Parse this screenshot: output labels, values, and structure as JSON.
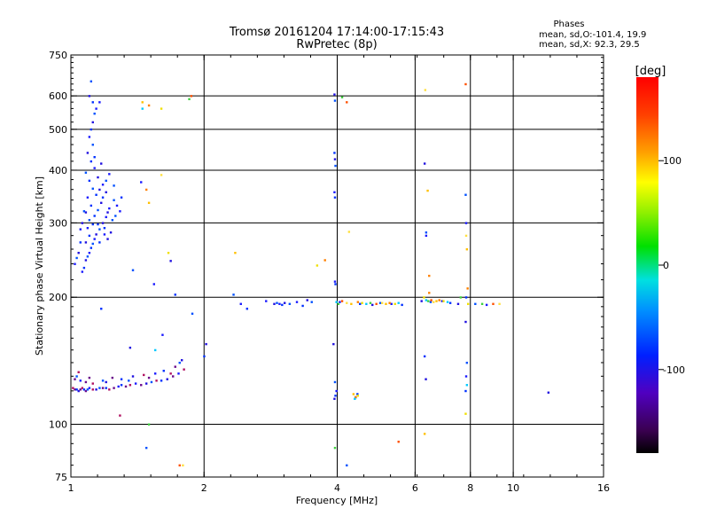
{
  "chart_data": {
    "type": "scatter",
    "title": "Tromsø 20161204 17:14:00-17:15:43",
    "subtitle": "RwPretec (8p)",
    "info": {
      "title": "Phases",
      "line1": "mean, sd,O:-101.4, 19.9",
      "line2": "mean, sd,X:  92.3, 29.5"
    },
    "xlabel": "Frequency [MHz]",
    "ylabel": "Stationary phase Virtual Height [km]",
    "x_scale": "log2",
    "y_scale": "log",
    "xlim": [
      1,
      16
    ],
    "ylim": [
      75,
      750
    ],
    "x_ticks": [
      1,
      2,
      4,
      6,
      8,
      10,
      16
    ],
    "x_tick_labels": [
      "1",
      "2",
      "4",
      "6",
      "8",
      "10",
      "16"
    ],
    "y_ticks": [
      75,
      100,
      200,
      300,
      400,
      500,
      600,
      750
    ],
    "y_tick_labels": [
      "75",
      "100",
      "200",
      "300",
      "400",
      "500",
      "600",
      "750"
    ],
    "grid_x": [
      2,
      4,
      6,
      8,
      10
    ],
    "grid_y": [
      100,
      200,
      300,
      400,
      500,
      600
    ],
    "colorbar": {
      "label": "[deg]",
      "range": [
        -180,
        180
      ],
      "ticks": [
        100,
        0,
        -100
      ],
      "tick_labels": [
        "100",
        "0",
        "-100"
      ]
    },
    "series_o": [
      [
        1.06,
        230
      ],
      [
        1.07,
        235
      ],
      [
        1.08,
        245
      ],
      [
        1.09,
        250
      ],
      [
        1.1,
        255
      ],
      [
        1.11,
        262
      ],
      [
        1.08,
        270
      ],
      [
        1.12,
        268
      ],
      [
        1.13,
        275
      ],
      [
        1.1,
        280
      ],
      [
        1.14,
        282
      ],
      [
        1.16,
        290
      ],
      [
        1.09,
        292
      ],
      [
        1.12,
        298
      ],
      [
        1.18,
        300
      ],
      [
        1.1,
        305
      ],
      [
        1.2,
        310
      ],
      [
        1.13,
        312
      ],
      [
        1.08,
        318
      ],
      [
        1.15,
        322
      ],
      [
        1.22,
        325
      ],
      [
        1.11,
        330
      ],
      [
        1.17,
        335
      ],
      [
        1.25,
        340
      ],
      [
        1.09,
        345
      ],
      [
        1.14,
        350
      ],
      [
        1.2,
        355
      ],
      [
        1.12,
        362
      ],
      [
        1.18,
        370
      ],
      [
        1.1,
        378
      ],
      [
        1.15,
        385
      ],
      [
        1.08,
        395
      ],
      [
        1.13,
        405
      ],
      [
        1.11,
        420
      ],
      [
        1.09,
        440
      ],
      [
        1.12,
        460
      ],
      [
        1.1,
        480
      ],
      [
        1.11,
        500
      ],
      [
        1.12,
        520
      ],
      [
        1.13,
        545
      ],
      [
        1.14,
        560
      ],
      [
        1.12,
        580
      ],
      [
        1.1,
        600
      ],
      [
        1.11,
        650
      ],
      [
        1.16,
        580
      ],
      [
        1.05,
        270
      ],
      [
        1.04,
        255
      ],
      [
        1.03,
        248
      ],
      [
        1.02,
        240
      ],
      [
        1.19,
        292
      ],
      [
        1.21,
        318
      ],
      [
        1.24,
        305
      ],
      [
        1.27,
        330
      ],
      [
        1.3,
        345
      ],
      [
        1.06,
        300
      ],
      [
        1.07,
        320
      ],
      [
        1.05,
        290
      ],
      [
        1.15,
        298
      ],
      [
        1.23,
        285
      ],
      [
        1.26,
        312
      ],
      [
        1.29,
        320
      ],
      [
        1.18,
        345
      ],
      [
        1.16,
        360
      ],
      [
        1.2,
        378
      ],
      [
        1.22,
        392
      ],
      [
        1.13,
        430
      ],
      [
        1.17,
        415
      ],
      [
        1.25,
        368
      ],
      [
        1.19,
        282
      ],
      [
        1.16,
        270
      ],
      [
        1.21,
        275
      ],
      [
        1.01,
        122
      ],
      [
        1.02,
        121
      ],
      [
        1.03,
        121
      ],
      [
        1.04,
        120
      ],
      [
        1.05,
        121
      ],
      [
        1.06,
        122
      ],
      [
        1.07,
        121
      ],
      [
        1.08,
        120
      ],
      [
        1.09,
        121
      ],
      [
        1.1,
        122
      ],
      [
        1.12,
        121
      ],
      [
        1.14,
        121
      ],
      [
        1.16,
        122
      ],
      [
        1.18,
        122
      ],
      [
        1.2,
        122
      ],
      [
        1.22,
        121
      ],
      [
        1.25,
        122
      ],
      [
        1.28,
        123
      ],
      [
        1.3,
        124
      ],
      [
        1.33,
        123
      ],
      [
        1.36,
        124
      ],
      [
        1.4,
        125
      ],
      [
        1.44,
        124
      ],
      [
        1.48,
        125
      ],
      [
        1.52,
        126
      ],
      [
        1.56,
        127
      ],
      [
        1.6,
        127
      ],
      [
        1.65,
        128
      ],
      [
        1.7,
        130
      ],
      [
        1.75,
        132
      ],
      [
        1.8,
        135
      ],
      [
        1.02,
        128
      ],
      [
        1.03,
        130
      ],
      [
        1.05,
        127
      ],
      [
        1.08,
        126
      ],
      [
        1.12,
        125
      ],
      [
        1.18,
        127
      ],
      [
        1.24,
        129
      ],
      [
        1.3,
        128
      ],
      [
        1.38,
        130
      ],
      [
        1.46,
        131
      ],
      [
        1.55,
        132
      ],
      [
        1.62,
        134
      ],
      [
        1.72,
        137
      ],
      [
        1.76,
        140
      ],
      [
        1.04,
        133
      ],
      [
        1.1,
        129
      ],
      [
        1.2,
        126
      ],
      [
        1.35,
        127
      ],
      [
        1.5,
        129
      ],
      [
        1.68,
        132
      ],
      [
        1.78,
        142
      ],
      [
        1.38,
        232
      ],
      [
        1.54,
        215
      ],
      [
        1.72,
        203
      ],
      [
        1.68,
        244
      ],
      [
        1.88,
        183
      ],
      [
        1.44,
        375
      ],
      [
        1.17,
        188
      ],
      [
        1.36,
        152
      ],
      [
        1.29,
        105
      ],
      [
        1.61,
        163
      ],
      [
        2.0,
        145
      ],
      [
        2.02,
        155
      ],
      [
        2.33,
        203
      ],
      [
        2.42,
        193
      ],
      [
        2.5,
        188
      ],
      [
        2.88,
        193
      ],
      [
        2.92,
        194
      ],
      [
        2.96,
        193
      ],
      [
        3.0,
        192
      ],
      [
        3.04,
        194
      ],
      [
        3.12,
        193
      ],
      [
        3.24,
        195
      ],
      [
        3.34,
        191
      ],
      [
        3.42,
        197
      ],
      [
        3.5,
        195
      ],
      [
        2.76,
        196
      ],
      [
        3.94,
        440
      ],
      [
        3.95,
        425
      ],
      [
        3.96,
        410
      ],
      [
        3.94,
        355
      ],
      [
        3.95,
        345
      ],
      [
        3.94,
        605
      ],
      [
        3.95,
        585
      ],
      [
        3.95,
        218
      ],
      [
        3.96,
        215
      ],
      [
        3.92,
        155
      ],
      [
        3.95,
        126
      ],
      [
        3.98,
        120
      ],
      [
        3.96,
        117
      ],
      [
        3.94,
        115
      ],
      [
        4.2,
        80
      ],
      [
        4.4,
        116
      ],
      [
        4.44,
        118
      ],
      [
        6.3,
        415
      ],
      [
        6.35,
        285
      ],
      [
        6.35,
        280
      ],
      [
        6.3,
        145
      ],
      [
        6.34,
        128
      ],
      [
        7.8,
        350
      ],
      [
        7.82,
        300
      ],
      [
        7.82,
        200
      ],
      [
        7.8,
        175
      ],
      [
        7.85,
        140
      ],
      [
        7.82,
        130
      ],
      [
        7.8,
        120
      ],
      [
        12.0,
        119
      ],
      [
        1.48,
        88
      ],
      [
        4.05,
        195
      ],
      [
        4.5,
        193
      ],
      [
        4.8,
        192
      ],
      [
        5.0,
        194
      ],
      [
        5.3,
        193
      ],
      [
        5.6,
        192
      ],
      [
        6.2,
        196
      ],
      [
        6.5,
        195
      ],
      [
        6.9,
        196
      ],
      [
        7.2,
        194
      ],
      [
        7.5,
        193
      ],
      [
        8.2,
        193
      ],
      [
        8.7,
        192
      ]
    ],
    "series_x": [
      [
        1.45,
        580
      ],
      [
        1.5,
        570
      ],
      [
        1.6,
        560
      ],
      [
        1.45,
        560
      ],
      [
        1.85,
        590
      ],
      [
        1.87,
        600
      ],
      [
        1.6,
        390
      ],
      [
        1.5,
        335
      ],
      [
        1.48,
        360
      ],
      [
        1.66,
        255
      ],
      [
        1.55,
        150
      ],
      [
        1.5,
        100
      ],
      [
        1.76,
        80
      ],
      [
        1.79,
        80
      ],
      [
        2.35,
        255
      ],
      [
        3.75,
        245
      ],
      [
        3.6,
        238
      ],
      [
        3.98,
        195
      ],
      [
        4.02,
        193
      ],
      [
        4.1,
        196
      ],
      [
        4.2,
        194
      ],
      [
        4.3,
        193
      ],
      [
        4.45,
        195
      ],
      [
        4.55,
        194
      ],
      [
        4.65,
        193
      ],
      [
        4.75,
        194
      ],
      [
        4.9,
        193
      ],
      [
        5.05,
        194
      ],
      [
        5.15,
        193
      ],
      [
        5.25,
        194
      ],
      [
        5.4,
        193
      ],
      [
        5.5,
        194
      ],
      [
        4.1,
        596
      ],
      [
        4.2,
        580
      ],
      [
        4.25,
        286
      ],
      [
        4.35,
        118
      ],
      [
        4.4,
        116
      ],
      [
        4.45,
        117
      ],
      [
        4.38,
        115
      ],
      [
        3.95,
        88
      ],
      [
        5.5,
        91
      ],
      [
        6.32,
        620
      ],
      [
        6.4,
        358
      ],
      [
        6.45,
        225
      ],
      [
        6.28,
        200
      ],
      [
        6.35,
        197
      ],
      [
        6.42,
        196
      ],
      [
        6.52,
        197
      ],
      [
        6.6,
        195
      ],
      [
        6.7,
        196
      ],
      [
        6.8,
        197
      ],
      [
        6.95,
        196
      ],
      [
        7.1,
        195
      ],
      [
        7.6,
        200
      ],
      [
        7.8,
        640
      ],
      [
        7.82,
        280
      ],
      [
        7.85,
        260
      ],
      [
        7.88,
        210
      ],
      [
        7.8,
        106
      ],
      [
        7.85,
        124
      ],
      [
        8.5,
        193
      ],
      [
        9.0,
        193
      ],
      [
        9.3,
        193
      ],
      [
        6.3,
        95
      ],
      [
        6.45,
        205
      ],
      [
        7.9,
        193
      ]
    ]
  }
}
